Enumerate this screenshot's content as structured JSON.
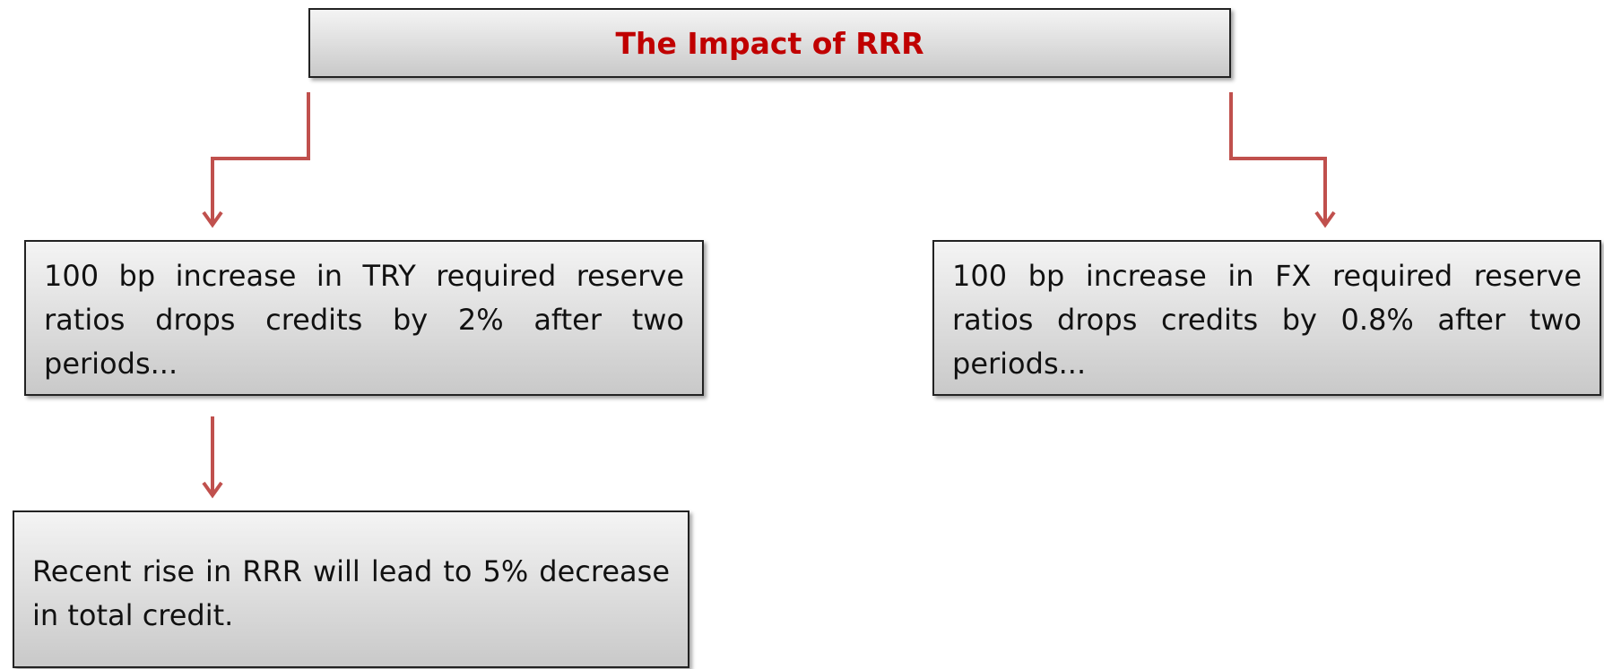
{
  "title": "The Impact of RRR",
  "boxes": [
    {
      "text": "100 bp increase in  TRY required reserve ratios drops credits by 2% after two periods..."
    },
    {
      "text": "100 bp increase in FX required reserve ratios drops credits by 0.8% after two periods..."
    },
    {
      "text": "Recent rise in RRR will lead to 5% decrease in total credit."
    }
  ]
}
